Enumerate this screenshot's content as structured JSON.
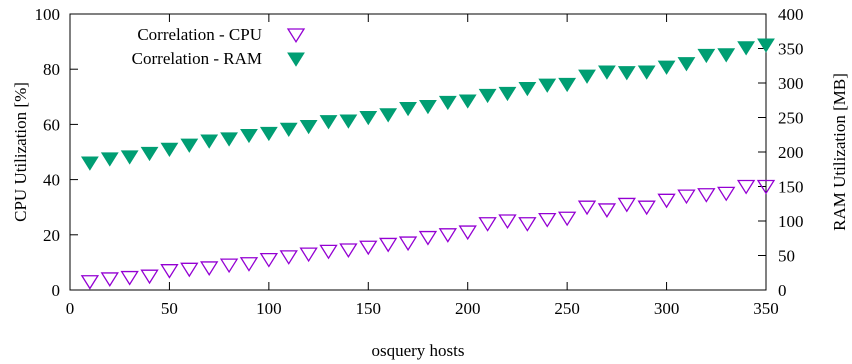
{
  "chart_data": {
    "type": "scatter",
    "xlabel": "osquery hosts",
    "ylabel_left": "CPU Utilization [%]",
    "ylabel_right": "RAM Utilization [MB]",
    "xlim": [
      0,
      350
    ],
    "ylim_left": [
      0,
      100
    ],
    "ylim_right": [
      0,
      400
    ],
    "xticks": [
      0,
      50,
      100,
      150,
      200,
      250,
      300,
      350
    ],
    "yticks_left": [
      0,
      20,
      40,
      60,
      80,
      100
    ],
    "yticks_right": [
      0,
      50,
      100,
      150,
      200,
      250,
      300,
      350,
      400
    ],
    "legend_position": "top-left",
    "grid": false,
    "x": [
      10,
      20,
      30,
      40,
      50,
      60,
      70,
      80,
      90,
      100,
      110,
      120,
      130,
      140,
      150,
      160,
      170,
      180,
      190,
      200,
      210,
      220,
      230,
      240,
      250,
      260,
      270,
      280,
      290,
      300,
      310,
      320,
      330,
      340,
      350
    ],
    "series": [
      {
        "name": "Correlation - CPU",
        "axis": "left",
        "marker": "triangle-down-open",
        "color": "#9400d3",
        "values": [
          3,
          4,
          4.5,
          5,
          7,
          7.5,
          8,
          9,
          9.5,
          11,
          12,
          13,
          14,
          14.5,
          15.5,
          16.5,
          17,
          19,
          20,
          21,
          24,
          25,
          24,
          25.5,
          26,
          30,
          29,
          31,
          30,
          32.5,
          34,
          34.5,
          35,
          37.5,
          37.5
        ]
      },
      {
        "name": "Correlation - RAM",
        "axis": "right",
        "marker": "triangle-down-filled",
        "color": "#009e73",
        "values": [
          184,
          190,
          193,
          198,
          204,
          210,
          216,
          219,
          224,
          227,
          233,
          237,
          244,
          245,
          250,
          254,
          263,
          266,
          272,
          274,
          282,
          285,
          292,
          297,
          298,
          310,
          316,
          315,
          316,
          323,
          328,
          340,
          341,
          351,
          355
        ]
      }
    ]
  }
}
